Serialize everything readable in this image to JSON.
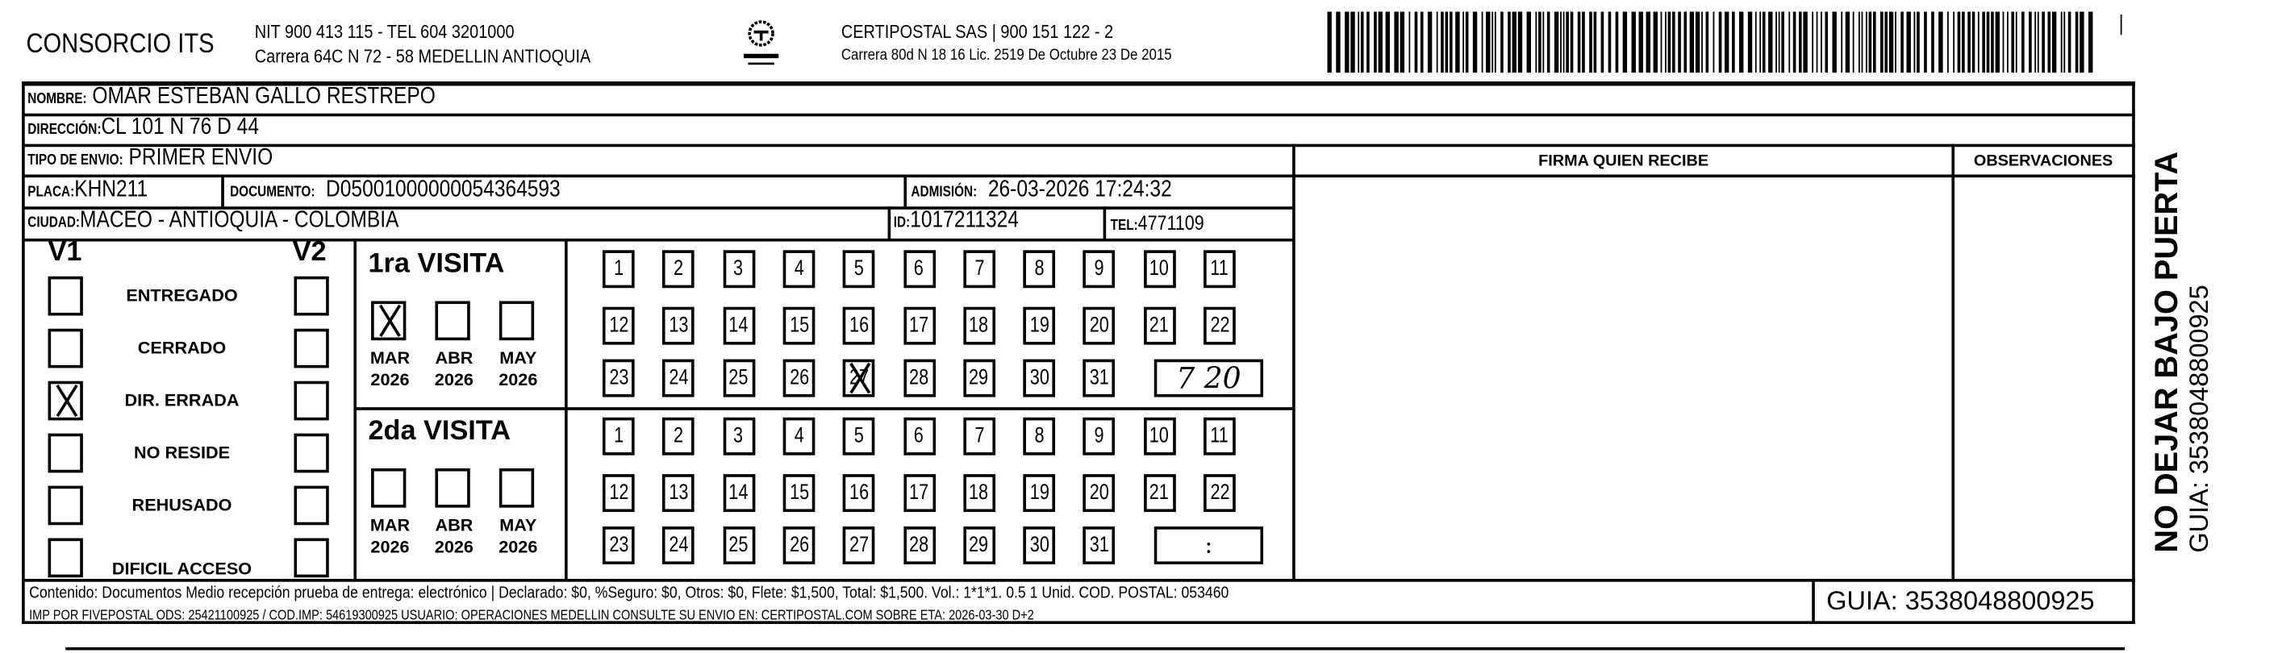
{
  "header": {
    "company": "CONSORCIO ITS",
    "company_line1": "NIT 900 413 115 - TEL 604 3201000",
    "company_line2": "Carrera 64C N 72 - 58 MEDELLIN ANTIOQUIA",
    "logo_text": "CERTIPOSTAL",
    "carrier_line1": "CERTIPOSTAL SAS | 900 151 122 - 2",
    "carrier_line2": "Carrera 80d N 18 16  Lic. 2519 De Octubre 23 De 2015",
    "barcode_value": "3538048800925"
  },
  "fields": {
    "nombre_label": "NOMBRE:",
    "nombre": "OMAR ESTEBAN GALLO RESTREPO",
    "direccion_label": "DIRECCIÓN:",
    "direccion": "CL 101 N 76 D 44",
    "tipo_label": "TIPO DE ENVIO:",
    "tipo": "PRIMER ENVÍO",
    "placa_label": "PLACA:",
    "placa": "KHN211",
    "documento_label": "DOCUMENTO:",
    "documento": "D05001000000054364593",
    "admision_label": "ADMISIÓN:",
    "admision": "26-03-2026 17:24:32",
    "ciudad_label": "CIUDAD:",
    "ciudad": "MACEO - ANTIOQUIA - COLOMBIA",
    "id_label": "ID:",
    "id": "1017211324",
    "tel_label": "TEL:",
    "tel": "4771109"
  },
  "right": {
    "firma": "FIRMA QUIEN RECIBE",
    "observaciones": "OBSERVACIONES"
  },
  "status": {
    "v1": "V1",
    "v2": "V2",
    "items": [
      {
        "label": "ENTREGADO",
        "v1": false,
        "v2": false
      },
      {
        "label": "CERRADO",
        "v1": false,
        "v2": false
      },
      {
        "label": "DIR. ERRADA",
        "v1": true,
        "v2": false
      },
      {
        "label": "NO RESIDE",
        "v1": false,
        "v2": false
      },
      {
        "label": "REHUSADO",
        "v1": false,
        "v2": false
      },
      {
        "label": "DIFICIL ACCESO",
        "v1": false,
        "v2": false
      }
    ]
  },
  "visits": [
    {
      "title": "1ra VISITA",
      "months": [
        {
          "m": "MAR",
          "y": "2026",
          "checked": true
        },
        {
          "m": "ABR",
          "y": "2026",
          "checked": false
        },
        {
          "m": "MAY",
          "y": "2026",
          "checked": false
        }
      ],
      "marked_day": 27,
      "time": "7 20"
    },
    {
      "title": "2da VISITA",
      "months": [
        {
          "m": "MAR",
          "y": "2026",
          "checked": false
        },
        {
          "m": "ABR",
          "y": "2026",
          "checked": false
        },
        {
          "m": "MAY",
          "y": "2026",
          "checked": false
        }
      ],
      "marked_day": null,
      "time": ":"
    }
  ],
  "footer": {
    "line1": "Contenido: Documentos Medio recepción prueba de entrega: electrónico | Declarado: $0, %Seguro: $0, Otros: $0, Flete: $1,500, Total: $1,500. Vol.: 1*1*1. 0.5  1 Unid. COD. POSTAL: 053460",
    "line2": "IMP POR FIVEPOSTAL ODS: 25421100925 / COD.IMP: 54619300925 USUARIO: OPERACIONES MEDELLIN CONSULTE SU ENVIO EN: CERTIPOSTAL.COM SOBRE ETA: 2026-03-30 D+2",
    "guia": "GUIA: 3538048800925"
  },
  "side": {
    "warning": "NO DEJAR BAJO PUERTA",
    "guia": "GUIA: 3538048800925"
  }
}
